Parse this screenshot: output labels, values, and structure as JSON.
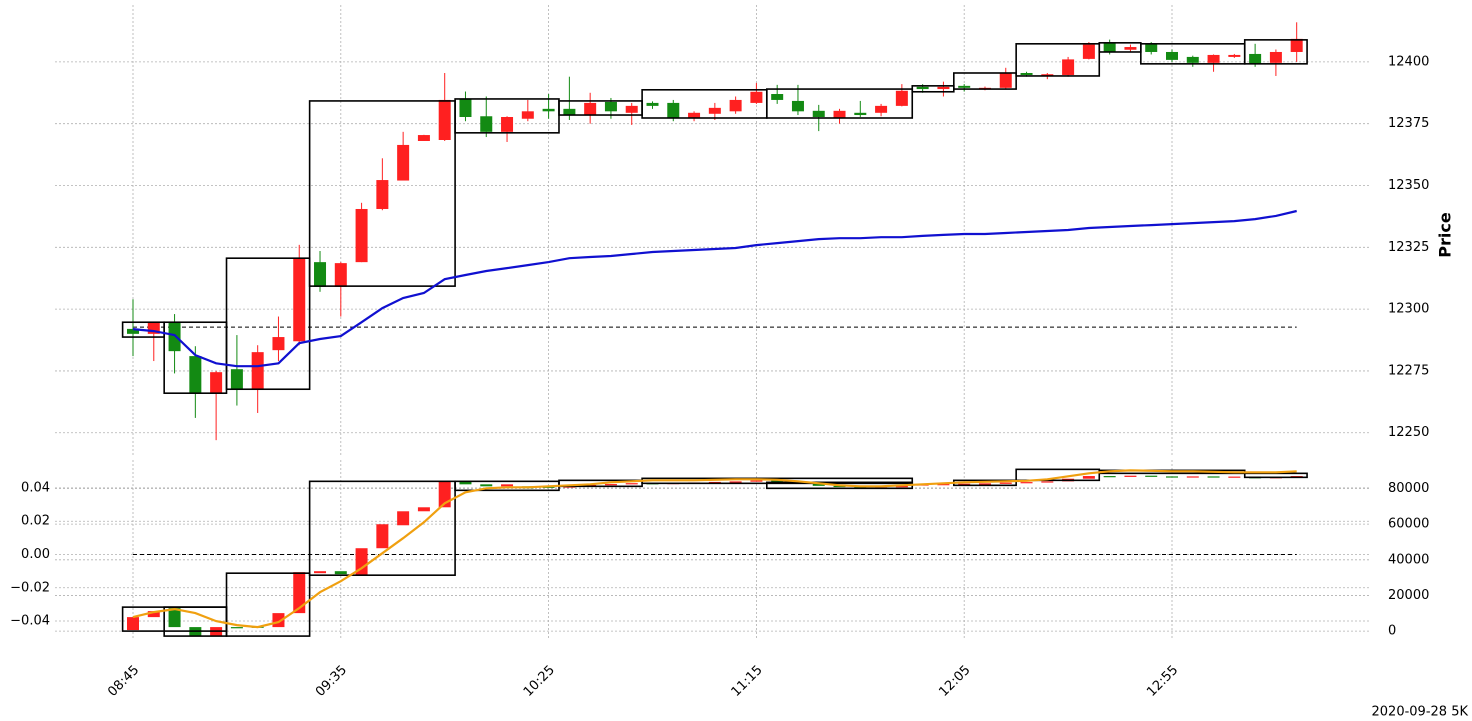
{
  "chart_data": [
    {
      "type": "candlestick",
      "ylabel": "Price",
      "yaxis_side": "right",
      "ylim": [
        12241,
        12423
      ],
      "yticks": [
        12250,
        12275,
        12300,
        12325,
        12350,
        12375,
        12400
      ],
      "grid": true,
      "up_color": "#ff2020",
      "down_color": "#138a13",
      "box_color": "#000000",
      "candles": {
        "open": [
          12292,
          12290,
          12295,
          12281,
          12266,
          12275.7,
          12267.6,
          12283.4,
          12287,
          12319,
          12309,
          12319,
          12340.5,
          12352,
          12368,
          12368.4,
          12385,
          12378,
          12371.7,
          12377,
          12381,
          12381,
          12378.5,
          12383.8,
          12379.4,
          12383.4,
          12383.4,
          12377.3,
          12379,
          12380,
          12383.4,
          12387,
          12384.2,
          12380.2,
          12377.3,
          12379.4,
          12379.4,
          12382.2,
          12389.9,
          12389,
          12390.3,
          12389,
          12389.5,
          12395.5,
          12394.3,
          12394.7,
          12401.2,
          12407.7,
          12404.9,
          12407.3,
          12404,
          12402,
          12399.6,
          12402,
          12403.2,
          12399.6,
          12404
        ],
        "high": [
          12304,
          12295,
          12298,
          12285,
          12275,
          12289.5,
          12285.4,
          12297,
          12326,
          12323.5,
          12319,
          12343,
          12361,
          12371.7,
          12370.5,
          12395.5,
          12388,
          12386,
          12378,
          12384.6,
          12387,
          12394,
          12387.5,
          12385.4,
          12383.4,
          12384,
          12384.6,
          12380,
          12383.4,
          12386,
          12391.5,
          12390.7,
          12390.7,
          12382.6,
          12381,
          12384.2,
          12383,
          12391,
          12391,
          12392,
          12391,
          12390,
          12397.6,
          12396,
          12395.5,
          12402,
          12408,
          12409,
          12407,
          12408,
          12405,
          12402.5,
          12403,
          12403.2,
          12407.3,
          12405,
          12416
        ],
        "low": [
          12281,
          12279,
          12274,
          12256,
          12247,
          12261,
          12258,
          12279,
          12285.4,
          12307,
          12297,
          12319,
          12340,
          12357.5,
          12368,
          12368,
          12376,
          12369.6,
          12367.6,
          12376,
          12377,
          12376.5,
          12375,
          12377,
          12374.5,
          12381,
          12376,
          12376,
          12376.5,
          12379,
          12383,
          12383,
          12378.5,
          12372,
          12375,
          12377.7,
          12378,
          12382,
          12387.5,
          12386,
          12388,
          12388.5,
          12389,
          12394,
          12393,
          12394,
          12401,
          12403,
          12404,
          12403,
          12400,
          12398,
          12396,
          12401.6,
          12398,
          12394.3,
          12400
        ],
        "close": [
          12290,
          12295,
          12283,
          12266,
          12274.5,
          12267.6,
          12282.6,
          12288.7,
          12320.6,
          12309,
          12318.6,
          12340.5,
          12352.2,
          12366.4,
          12370.4,
          12384.6,
          12377.7,
          12371.7,
          12377.7,
          12380,
          12380,
          12378.5,
          12383.4,
          12380,
          12382.2,
          12382.2,
          12377.3,
          12379.4,
          12381.4,
          12384.6,
          12387.9,
          12384.6,
          12380,
          12377.7,
          12380.2,
          12378.5,
          12382.2,
          12388.3,
          12389,
          12389.9,
          12389.5,
          12389.5,
          12395.5,
          12394.7,
          12395,
          12401,
          12407,
          12404,
          12406,
          12404,
          12400.8,
          12399.6,
          12402.8,
          12402.8,
          12399.2,
          12404,
          12409.3
        ]
      },
      "boxes": {
        "items": [
          {
            "start": 0,
            "end": 1,
            "low": 12288.7,
            "high": 12294.7
          },
          {
            "start": 2,
            "end": 4,
            "low": 12266,
            "high": 12294.7
          },
          {
            "start": 5,
            "end": 8,
            "low": 12267.6,
            "high": 12320.6
          },
          {
            "start": 9,
            "end": 15,
            "low": 12309.3,
            "high": 12384.2
          },
          {
            "start": 16,
            "end": 20,
            "low": 12371.3,
            "high": 12385
          },
          {
            "start": 21,
            "end": 24,
            "low": 12378.5,
            "high": 12384.2
          },
          {
            "start": 25,
            "end": 30,
            "low": 12377.3,
            "high": 12388.7
          },
          {
            "start": 31,
            "end": 37,
            "low": 12377.3,
            "high": 12389
          },
          {
            "start": 38,
            "end": 39,
            "low": 12387.9,
            "high": 12390.3
          },
          {
            "start": 40,
            "end": 42,
            "low": 12389,
            "high": 12395.5
          },
          {
            "start": 43,
            "end": 46,
            "low": 12394.3,
            "high": 12407.3
          },
          {
            "start": 47,
            "end": 48,
            "low": 12404,
            "high": 12407.7
          },
          {
            "start": 49,
            "end": 53,
            "low": 12399.2,
            "high": 12407.3
          },
          {
            "start": 54,
            "end": 56,
            "low": 12399.2,
            "high": 12408.9
          }
        ]
      },
      "lines": [
        {
          "color": "#1010d0",
          "values": [
            12291.9,
            12291.1,
            12289.5,
            12281.4,
            12278.1,
            12276.9,
            12276.9,
            12278.1,
            12286.2,
            12287.9,
            12289.1,
            12294.7,
            12300.4,
            12304.5,
            12306.5,
            12312.1,
            12313.8,
            12315.4,
            12316.6,
            12317.8,
            12319,
            12320.6,
            12321.1,
            12321.5,
            12322.3,
            12323.1,
            12323.5,
            12323.9,
            12324.3,
            12324.7,
            12325.9,
            12326.7,
            12327.5,
            12328.3,
            12328.7,
            12328.7,
            12329.1,
            12329.1,
            12329.6,
            12330,
            12330.4,
            12330.4,
            12330.8,
            12331.2,
            12331.6,
            12332,
            12332.8,
            12333.2,
            12333.6,
            12334,
            12334.4,
            12334.8,
            12335.2,
            12335.6,
            12336.4,
            12337.7,
            12339.7
          ]
        }
      ],
      "hlines": [
        {
          "value": 12292.7,
          "style": "dashed"
        }
      ]
    },
    {
      "type": "candlestick",
      "footer": "2020-09-28 5K",
      "categories": [
        "08:45",
        null,
        null,
        null,
        null,
        null,
        null,
        null,
        null,
        null,
        "09:35",
        null,
        null,
        null,
        null,
        null,
        null,
        null,
        null,
        null,
        "10:25",
        null,
        null,
        null,
        null,
        null,
        null,
        null,
        null,
        null,
        "11:15",
        null,
        null,
        null,
        null,
        null,
        null,
        null,
        null,
        null,
        "12:05",
        null,
        null,
        null,
        null,
        null,
        null,
        null,
        null,
        null,
        "12:55",
        null,
        null,
        null,
        null,
        null,
        null
      ],
      "ylim": [
        -0.0514,
        0.0568
      ],
      "yticks": [
        {
          "value": -0.04,
          "label": "−0.04"
        },
        {
          "value": -0.02,
          "label": "−0.02"
        },
        {
          "value": 0,
          "label": "0.00"
        },
        0.02,
        0.04
      ],
      "y2lim": [
        -5000,
        96000
      ],
      "y2ticks": [
        0,
        20000,
        40000,
        60000,
        80000
      ],
      "grid": true,
      "up_color": "#ff2020",
      "down_color": "#138a13",
      "box_color": "#000000",
      "candles": {
        "axis": "y2",
        "open": [
          560,
          7843,
          12885,
          2241,
          -2801,
          2241,
          2500,
          2241,
          10083,
          32492,
          33612,
          31371,
          46497,
          59381,
          67224,
          69465,
          84030,
          82349,
          81229,
          81229,
          81000,
          80500,
          81500,
          82000,
          82500,
          83000,
          82700,
          83100,
          83400,
          83700,
          84000,
          84500,
          84000,
          83000,
          81500,
          80800,
          80300,
          80700,
          82000,
          82300,
          82500,
          82700,
          82900,
          83300,
          83600,
          84000,
          85500,
          87000,
          86500,
          87200,
          86800,
          86500,
          86800,
          86300,
          86700,
          85700,
          86500
        ],
        "close": [
          7843,
          11204,
          2241,
          -2801,
          2241,
          2000,
          2241,
          10083,
          33052,
          33612,
          31931,
          46497,
          59941,
          67224,
          69465,
          84030,
          82349,
          81229,
          82349,
          80108,
          80500,
          81500,
          82000,
          82500,
          83000,
          82700,
          83100,
          83400,
          83700,
          84000,
          84500,
          84000,
          83000,
          81500,
          80800,
          80300,
          80700,
          82000,
          82300,
          82500,
          82700,
          82900,
          83300,
          83600,
          84000,
          85500,
          87000,
          86500,
          87200,
          86800,
          86500,
          86800,
          86300,
          86700,
          85700,
          86500,
          87000
        ]
      },
      "boxes": {
        "axis": "y2",
        "items": [
          {
            "start": 0,
            "end": 4,
            "low": 0,
            "high": 13445
          },
          {
            "start": 2,
            "end": 4,
            "low": -2801,
            "high": 13445
          },
          {
            "start": 5,
            "end": 8,
            "low": -2801,
            "high": 32492
          },
          {
            "start": 9,
            "end": 15,
            "low": 31371,
            "high": 84030
          },
          {
            "start": 16,
            "end": 20,
            "low": 78988,
            "high": 84030
          },
          {
            "start": 21,
            "end": 24,
            "low": 81229,
            "high": 84590
          },
          {
            "start": 25,
            "end": 37,
            "low": 82910,
            "high": 85711
          },
          {
            "start": 31,
            "end": 37,
            "low": 80109,
            "high": 83470
          },
          {
            "start": 40,
            "end": 42,
            "low": 81789,
            "high": 84590
          },
          {
            "start": 43,
            "end": 46,
            "low": 84590,
            "high": 90752
          },
          {
            "start": 47,
            "end": 53,
            "low": 88512,
            "high": 90192
          },
          {
            "start": 54,
            "end": 56,
            "low": 86271,
            "high": 88512
          }
        ]
      },
      "lines": [
        {
          "color": "#f0a010",
          "axis": "y2",
          "values": [
            7843,
            10644,
            12324,
            10083,
            5602,
            3361,
            2241,
            5042,
            12885,
            21848,
            28010,
            35293,
            43696,
            52099,
            61062,
            71706,
            77868,
            80109,
            80669,
            80669,
            81229,
            81789,
            82349,
            83470,
            84030,
            84590,
            84590,
            84590,
            84870,
            85150,
            85150,
            84870,
            84030,
            82910,
            81789,
            81229,
            81229,
            81789,
            82349,
            82910,
            83470,
            83750,
            84030,
            84310,
            85150,
            86831,
            88512,
            89632,
            90192,
            89912,
            89632,
            89632,
            89352,
            89072,
            89072,
            89072,
            89632
          ]
        }
      ],
      "hlines": [
        {
          "value": 0,
          "style": "dashed"
        }
      ]
    }
  ]
}
